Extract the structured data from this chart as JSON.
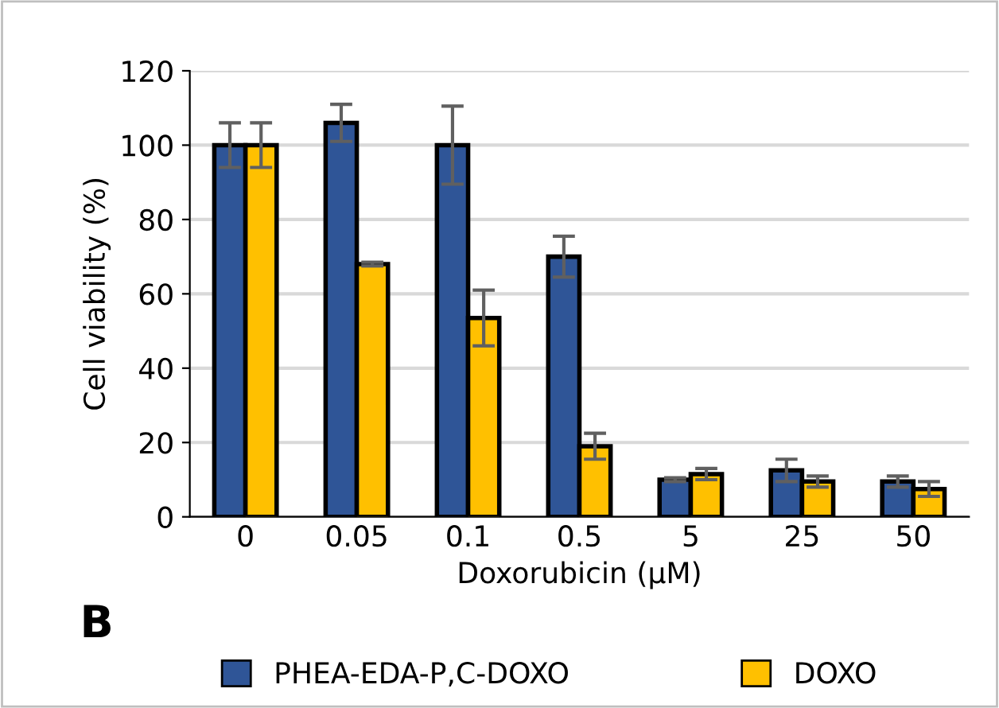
{
  "chart_data": {
    "type": "bar",
    "xlabel": "Doxorubicin (µM)",
    "ylabel": "Cell viability (%)",
    "categories": [
      "0",
      "0.05",
      "0.1",
      "0.5",
      "5",
      "25",
      "50"
    ],
    "series": [
      {
        "name": "PHEA-EDA-P,C-DOXO",
        "color": "#2f5597",
        "values": [
          100,
          106,
          100,
          70,
          10,
          12.5,
          9.5
        ],
        "errors": [
          6,
          5,
          10.5,
          5.5,
          0.5,
          3,
          1.5
        ]
      },
      {
        "name": "DOXO",
        "color": "#ffc000",
        "values": [
          100,
          68,
          53.5,
          19,
          11.5,
          9.5,
          7.5
        ],
        "errors": [
          6,
          0.5,
          7.5,
          3.5,
          1.5,
          1.5,
          2
        ]
      }
    ],
    "ylim": [
      0,
      120
    ],
    "yticks": [
      0,
      20,
      40,
      60,
      80,
      100,
      120
    ],
    "grid": "y",
    "legend": "bottom",
    "annotations": [
      "B"
    ]
  }
}
